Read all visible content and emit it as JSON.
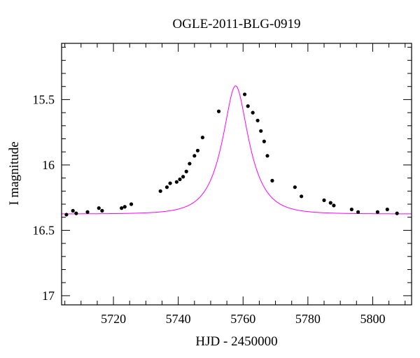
{
  "chart_data": {
    "type": "scatter",
    "title": "OGLE-2011-BLG-0919",
    "xlabel": "HJD - 2450000",
    "ylabel": "I magnitude",
    "xlim": [
      5704,
      5812
    ],
    "ylim": [
      17.07,
      15.07
    ],
    "y_inverted": true,
    "x_ticks": [
      5720,
      5740,
      5760,
      5780,
      5800
    ],
    "x_tick_labels": [
      "5720",
      "5740",
      "5760",
      "5780",
      "5800"
    ],
    "y_ticks": [
      15.5,
      16,
      16.5,
      17
    ],
    "y_tick_labels": [
      "15.5",
      "16",
      "16.5",
      "17"
    ],
    "grid": false,
    "legend": false,
    "colors": {
      "points": "#000000",
      "model": "#ff00ff",
      "frame": "#000000"
    },
    "series": [
      {
        "type": "scatter",
        "x": [
          5705.5,
          5707.5,
          5708.5,
          5712,
          5715.5,
          5716.5,
          5722.5,
          5723.5,
          5725.5,
          5734.5,
          5736.5,
          5737.5,
          5739.5,
          5740.5,
          5741.5,
          5742.5,
          5743.5,
          5745,
          5746,
          5747.5,
          5752.5,
          5760.5,
          5761.5,
          5763,
          5764.5,
          5765.5,
          5766.5,
          5767.5,
          5769,
          5776,
          5778,
          5785,
          5787,
          5788,
          5793.5,
          5795.5,
          5801.5,
          5804.5,
          5807.5
        ],
        "y": [
          16.38,
          16.35,
          16.37,
          16.36,
          16.33,
          16.35,
          16.33,
          16.32,
          16.3,
          16.2,
          16.17,
          16.14,
          16.13,
          16.11,
          16.09,
          16.05,
          15.99,
          15.93,
          15.89,
          15.79,
          15.59,
          15.46,
          15.55,
          15.6,
          15.66,
          15.74,
          15.82,
          15.93,
          16.12,
          16.17,
          16.24,
          16.27,
          16.29,
          16.31,
          16.34,
          16.36,
          16.36,
          16.34,
          16.37
        ]
      },
      {
        "type": "line",
        "model": {
          "baseline": 16.375,
          "peak_mag": 15.395,
          "t0": 5757.7,
          "tE": 7.5
        }
      }
    ]
  }
}
